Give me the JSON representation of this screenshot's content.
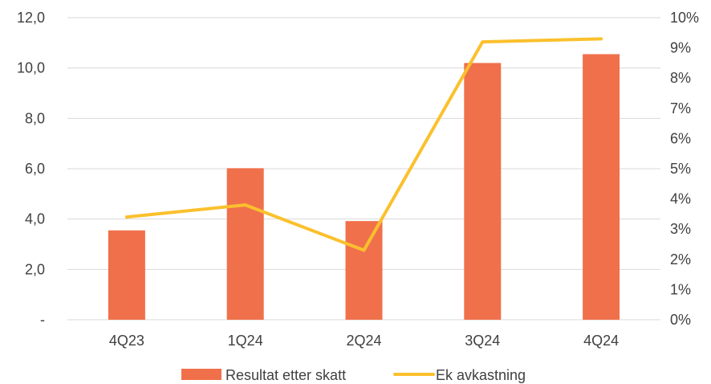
{
  "chart_data": {
    "type": "bar",
    "categories": [
      "4Q23",
      "1Q24",
      "2Q24",
      "3Q24",
      "4Q24"
    ],
    "series": [
      {
        "name": "Resultat etter skatt",
        "type": "bar",
        "axis": "left",
        "color": "#F0704B",
        "values": [
          3.55,
          6.02,
          3.92,
          10.2,
          10.55
        ]
      },
      {
        "name": "Ek avkastning",
        "type": "line",
        "axis": "right",
        "color": "#FBC02D",
        "values": [
          0.034,
          0.038,
          0.023,
          0.092,
          0.093
        ]
      }
    ],
    "y_left": {
      "range": [
        0,
        12
      ],
      "ticks": [
        0,
        2,
        4,
        6,
        8,
        10,
        12
      ],
      "tick_labels": [
        "-",
        "2,0",
        "4,0",
        "6,0",
        "8,0",
        "10,0",
        "12,0"
      ]
    },
    "y_right": {
      "range": [
        0,
        0.1
      ],
      "ticks": [
        0,
        0.01,
        0.02,
        0.03,
        0.04,
        0.05,
        0.06,
        0.07,
        0.08,
        0.09,
        0.1
      ],
      "tick_labels": [
        "0%",
        "1%",
        "2%",
        "3%",
        "4%",
        "5%",
        "6%",
        "7%",
        "8%",
        "9%",
        "10%"
      ]
    },
    "grid": true,
    "legend": {
      "placement": "bottom"
    }
  }
}
